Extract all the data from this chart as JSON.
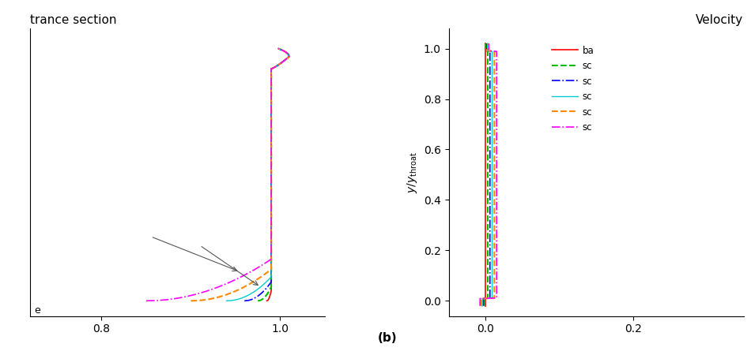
{
  "title_left": "trance section",
  "title_right": "Velocity",
  "xlim_left": [
    0.72,
    1.05
  ],
  "ylim_left": [
    -0.06,
    1.08
  ],
  "xlim_right": [
    -0.05,
    0.35
  ],
  "ylim_right": [
    -0.06,
    1.08
  ],
  "xticks_left": [
    0.8,
    1.0
  ],
  "yticks_right": [
    0.0,
    0.2,
    0.4,
    0.6,
    0.8,
    1.0
  ],
  "xticks_right": [
    0.0,
    0.2
  ],
  "label_b": "(b)",
  "lines": [
    {
      "label": "ba",
      "color": "#ff0000",
      "linestyle": "-",
      "linewidth": 1.2
    },
    {
      "label": "sc",
      "color": "#00bb00",
      "linestyle": "--",
      "linewidth": 1.5
    },
    {
      "label": "sc",
      "color": "#0000ff",
      "linestyle": "-.",
      "linewidth": 1.2
    },
    {
      "label": "sc",
      "color": "#00cccc",
      "linestyle": "-",
      "linewidth": 1.0
    },
    {
      "label": "sc",
      "color": "#ff8800",
      "linestyle": "--",
      "linewidth": 1.5
    },
    {
      "label": "sc",
      "color": "#ff00ff",
      "linestyle": "-.",
      "linewidth": 1.2
    }
  ],
  "background": "#ffffff",
  "figsize": [
    9.5,
    4.5
  ],
  "dpi": 100
}
